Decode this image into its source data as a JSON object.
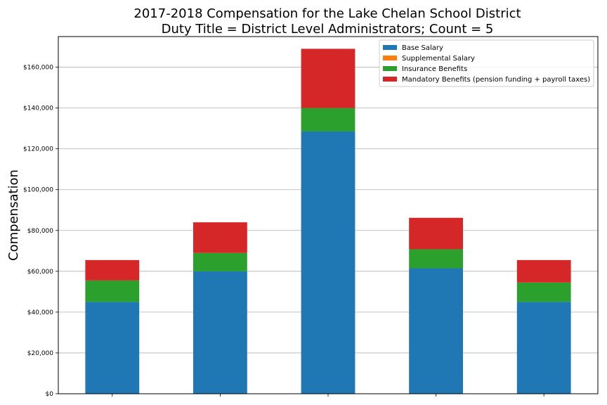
{
  "chart_data": {
    "type": "bar",
    "stacked": true,
    "title_lines": [
      "2017-2018 Compensation for the Lake Chelan School District",
      "Duty Title = District Level Administrators; Count = 5"
    ],
    "xlabel": "",
    "ylabel": "Compensation",
    "categories": [
      "",
      "",
      "",
      "",
      ""
    ],
    "series": [
      {
        "name": "Base Salary",
        "color": "#1f77b4",
        "values": [
          45000,
          60000,
          128500,
          61500,
          45000
        ]
      },
      {
        "name": "Supplemental Salary",
        "color": "#ff7f0e",
        "values": [
          0,
          0,
          0,
          0,
          0
        ]
      },
      {
        "name": "Insurance Benefits",
        "color": "#2ca02c",
        "values": [
          10500,
          9000,
          11500,
          9300,
          9500
        ]
      },
      {
        "name": "Mandatory Benefits (pension funding + payroll taxes)",
        "color": "#d62728",
        "values": [
          10000,
          15000,
          29000,
          15400,
          11000
        ]
      }
    ],
    "ylim": [
      0,
      175000
    ],
    "yticks": [
      0,
      20000,
      40000,
      60000,
      80000,
      100000,
      120000,
      140000,
      160000
    ],
    "ytick_labels": [
      "$0",
      "$20,000",
      "$40,000",
      "$60,000",
      "$80,000",
      "$100,000",
      "$120,000",
      "$140,000",
      "$160,000"
    ],
    "grid": "horizontal",
    "legend_position": "top-right"
  }
}
